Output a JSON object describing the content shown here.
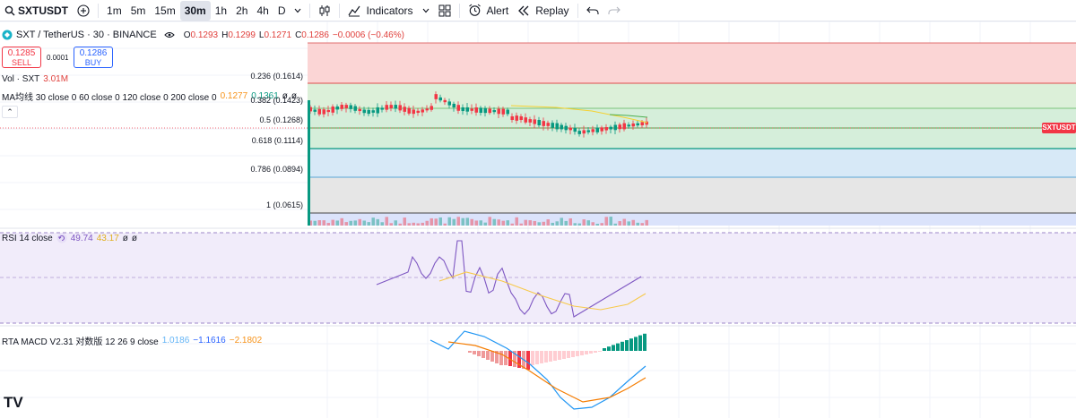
{
  "toolbar": {
    "symbol": "SXTUSDT",
    "intervals": [
      "1m",
      "5m",
      "15m",
      "30m",
      "1h",
      "2h",
      "4h",
      "D"
    ],
    "active_interval": "30m",
    "indicators_label": "Indicators",
    "alert_label": "Alert",
    "replay_label": "Replay"
  },
  "legend": {
    "title": "SXT / TetherUS · 30 · BINANCE",
    "o_label": "O",
    "o": "0.1293",
    "h_label": "H",
    "h": "0.1299",
    "l_label": "L",
    "l": "0.1271",
    "c_label": "C",
    "c": "0.1286",
    "change": "−0.0006 (−0.46%)"
  },
  "trade": {
    "sell_price": "0.1285",
    "sell_label": "SELL",
    "spread": "0.0001",
    "buy_price": "0.1286",
    "buy_label": "BUY"
  },
  "volume_legend": {
    "label": "Vol · SXT",
    "value": "3.01M"
  },
  "ma_legend": {
    "label": "MA均线 30 close 0 60 close 0 120 close 0 200 close 0",
    "v1": "0.1277",
    "v2": "0.1361",
    "v3": "ø",
    "v4": "ø"
  },
  "fib": [
    {
      "label": "0.236 (0.1614)",
      "color": "#e04c4c"
    },
    {
      "label": "0.382 (0.1423)",
      "color": "#a5a5a5"
    },
    {
      "label": "0.5 (0.1268)",
      "color": "#4caf50"
    },
    {
      "label": "0.618 (0.1114)",
      "color": "#089981"
    },
    {
      "label": "0.786 (0.0894)",
      "color": "#2196f3"
    },
    {
      "label": "1 (0.0615)",
      "color": "#555555"
    }
  ],
  "price_tag": "SXTUSDT",
  "rsi_legend": {
    "label": "RSI 14 close",
    "rsi": "49.74",
    "ma": "43.17",
    "v3": "ø",
    "v4": "ø"
  },
  "macd_legend": {
    "label": "RTA MACD V2.31 对数版 12 26 9 close",
    "v1": "1.0186",
    "v2": "−1.1616",
    "v3": "−2.1802"
  },
  "colors": {
    "up": "#089981",
    "down": "#f23645",
    "rsi": "#7e57c2",
    "rsi_ma": "#f7c94a",
    "macd": "#2196f3",
    "signal": "#f57c00"
  },
  "logo": "TV"
}
